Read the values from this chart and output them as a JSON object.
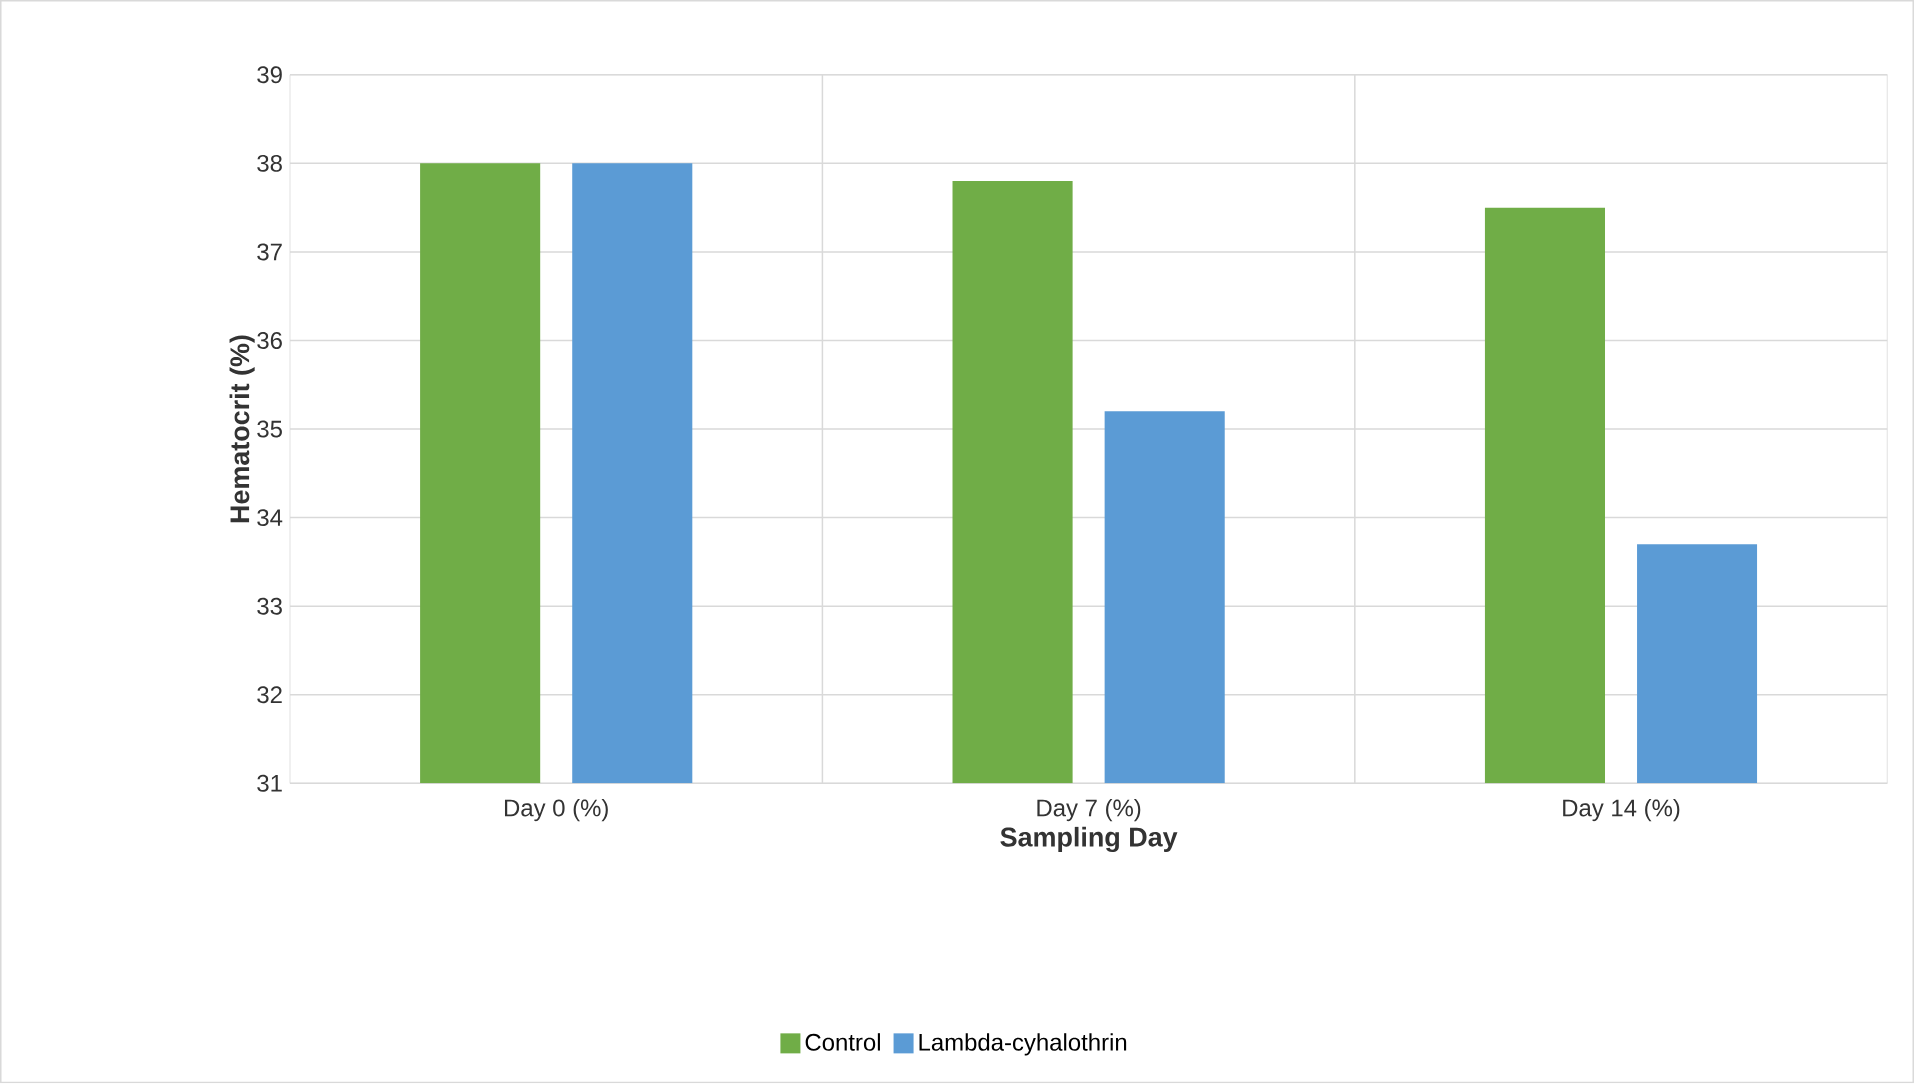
{
  "chart_data": {
    "type": "bar",
    "xlabel": "Sampling Day",
    "ylabel": "Hematocrit (%)",
    "categories": [
      "Day 0 (%)",
      "Day 7 (%)",
      "Day 14 (%)"
    ],
    "series": [
      {
        "name": "Control",
        "color": "#70ad47",
        "values": [
          38,
          37.8,
          37.5
        ]
      },
      {
        "name": "Lambda-cyhalothrin",
        "color": "#5b9bd5",
        "values": [
          38,
          35.2,
          33.7
        ]
      }
    ],
    "ylim": [
      31,
      39
    ],
    "yticks": [
      31,
      32,
      33,
      34,
      35,
      36,
      37,
      38,
      39
    ],
    "grid": true,
    "legend": "bottom"
  }
}
